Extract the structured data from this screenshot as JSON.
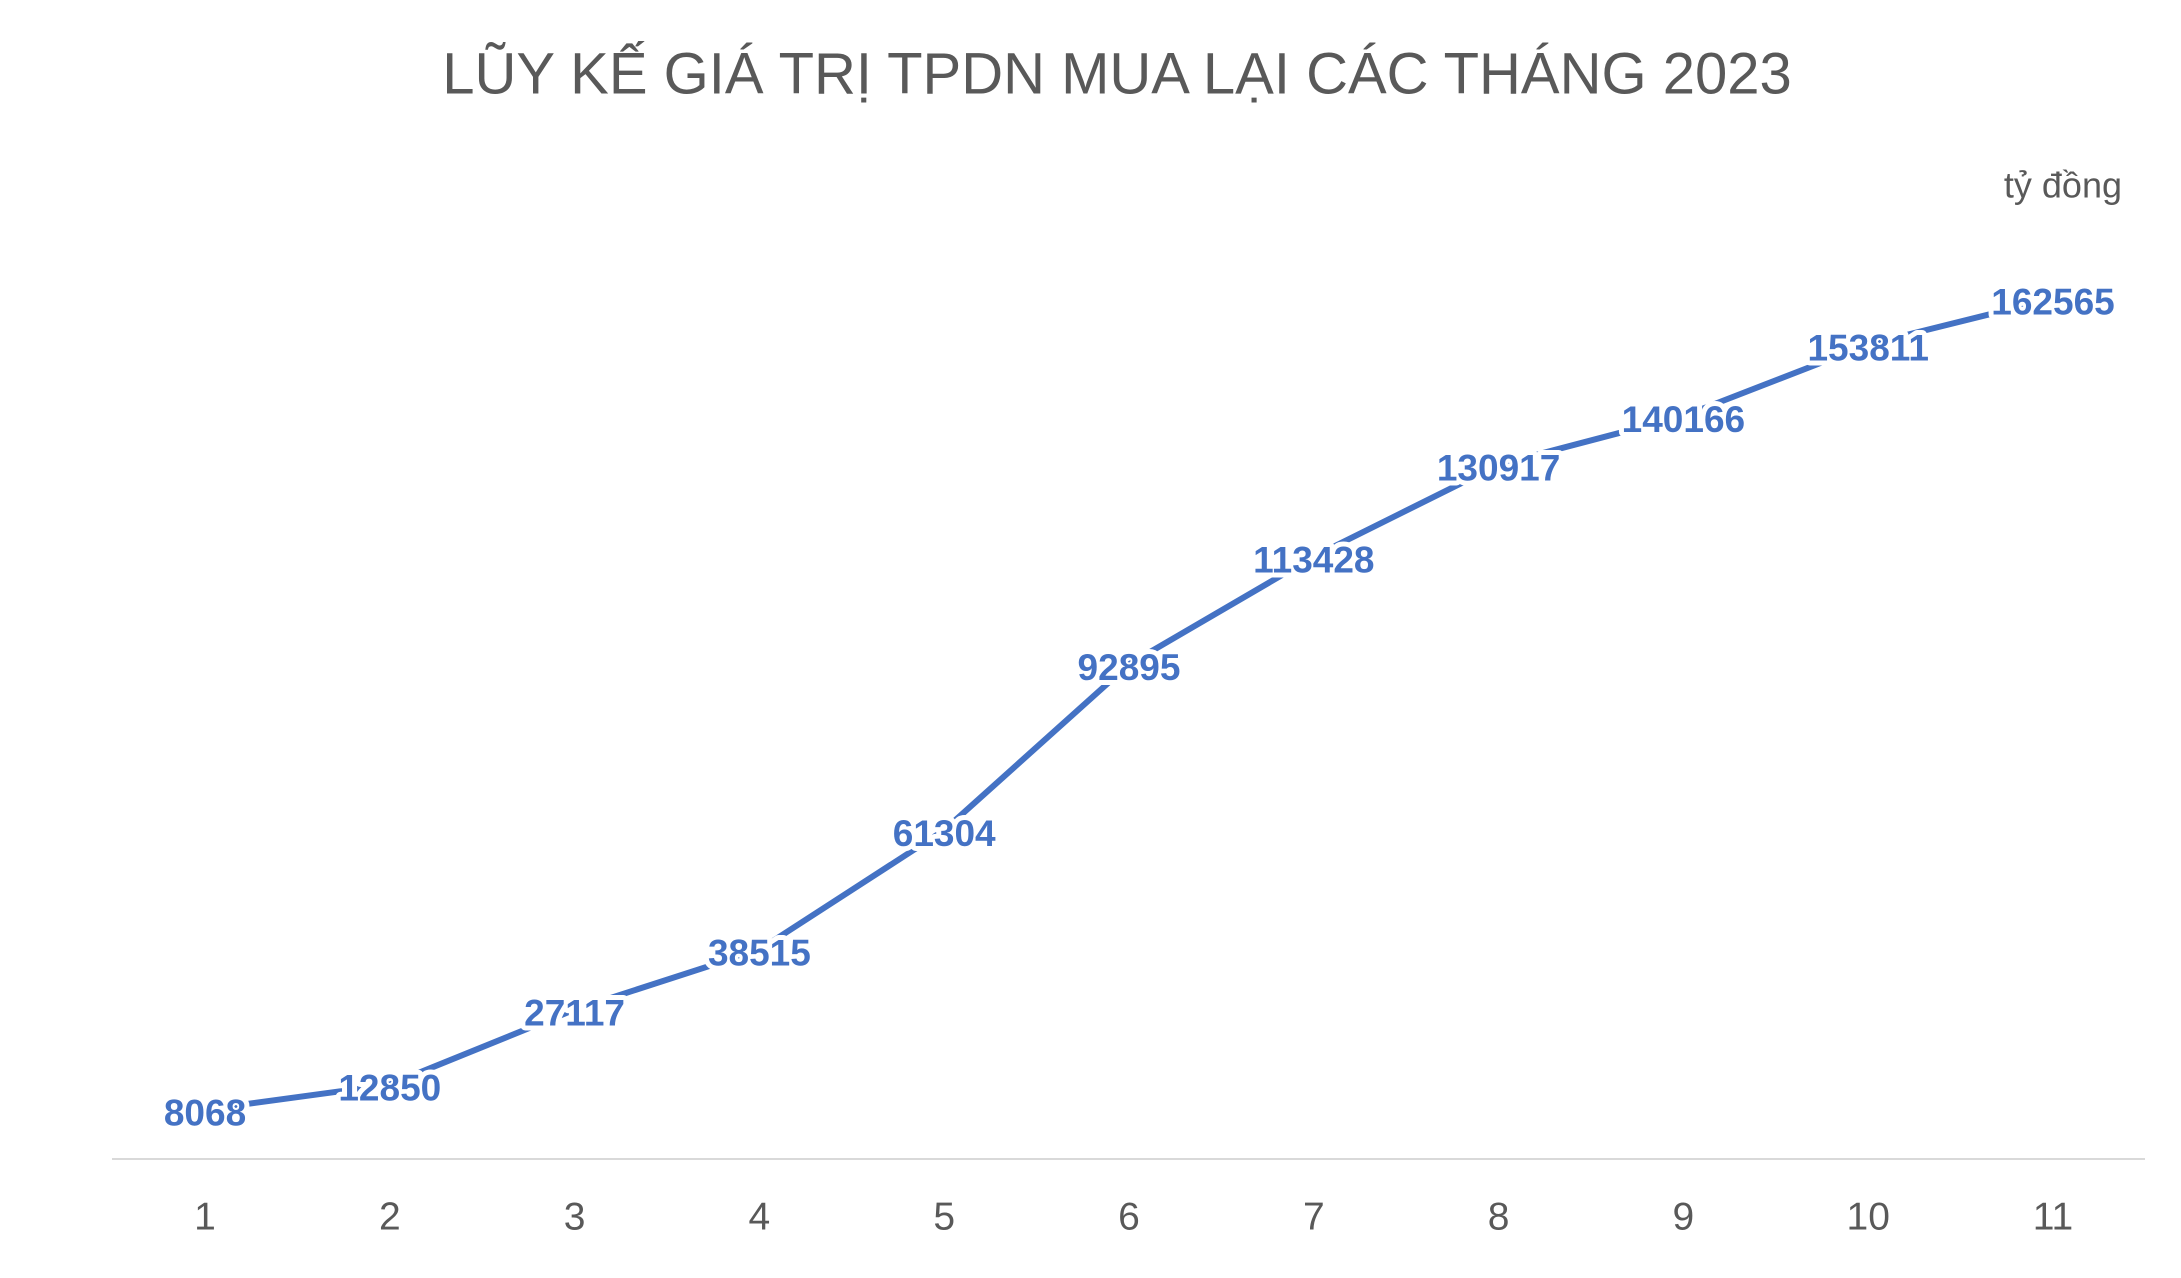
{
  "chart_data": {
    "type": "line",
    "title": "LŨY KẾ GIÁ TRỊ TPDN MUA LẠI CÁC THÁNG 2023",
    "unit_label": "tỷ đồng",
    "categories": [
      "1",
      "2",
      "3",
      "4",
      "5",
      "6",
      "7",
      "8",
      "9",
      "10",
      "11"
    ],
    "values": [
      8068,
      12850,
      27117,
      38515,
      61304,
      92895,
      113428,
      130917,
      140166,
      153811,
      162565
    ],
    "color": "#4472c4",
    "ylim": [
      0,
      180000
    ]
  }
}
